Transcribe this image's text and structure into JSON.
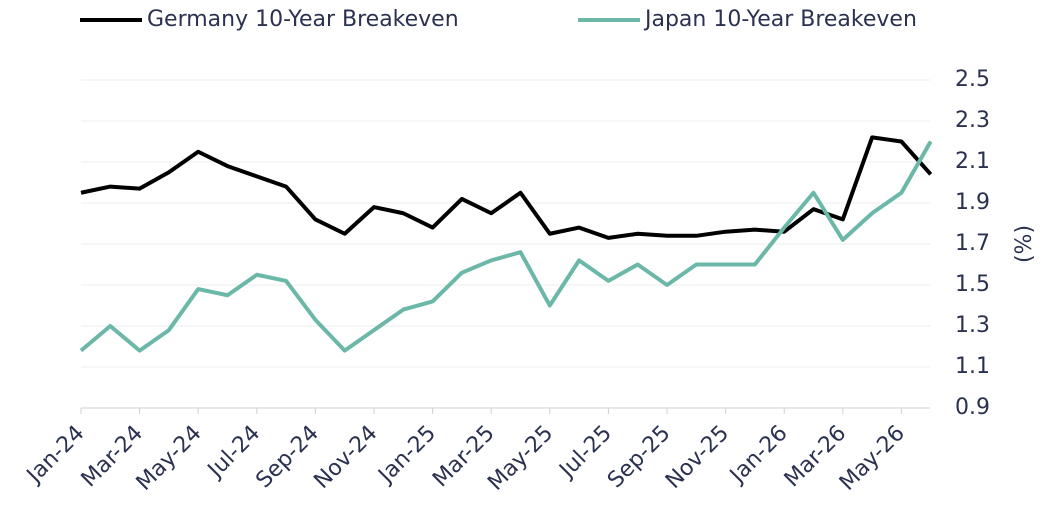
{
  "chart_data": {
    "type": "line",
    "x": [
      "2024-01",
      "2024-02",
      "2024-03",
      "2024-04",
      "2024-05",
      "2024-06",
      "2024-07",
      "2024-08",
      "2024-09",
      "2024-10",
      "2024-11",
      "2024-12",
      "2025-01",
      "2025-02",
      "2025-03",
      "2025-04",
      "2025-05",
      "2025-06",
      "2025-07",
      "2025-08",
      "2025-09",
      "2025-10",
      "2025-11",
      "2025-12",
      "2026-01",
      "2026-02",
      "2026-03",
      "2026-04",
      "2026-05",
      "2026-06"
    ],
    "series": [
      {
        "name": "Germany 10-Year Breakeven",
        "color": "#000000",
        "values": [
          1.95,
          1.98,
          1.97,
          2.05,
          2.15,
          2.08,
          2.03,
          1.98,
          1.82,
          1.75,
          1.88,
          1.85,
          1.78,
          1.92,
          1.85,
          1.95,
          1.75,
          1.78,
          1.73,
          1.75,
          1.74,
          1.74,
          1.76,
          1.77,
          1.76,
          1.87,
          1.82,
          2.22,
          2.2,
          2.04
        ]
      },
      {
        "name": "Japan 10-Year Breakeven",
        "color": "#6cb8a8",
        "values": [
          1.18,
          1.3,
          1.18,
          1.28,
          1.48,
          1.45,
          1.55,
          1.52,
          1.33,
          1.18,
          1.28,
          1.38,
          1.42,
          1.56,
          1.62,
          1.66,
          1.4,
          1.62,
          1.52,
          1.6,
          1.5,
          1.6,
          1.6,
          1.6,
          1.78,
          1.95,
          1.72,
          1.85,
          1.95,
          2.2
        ]
      }
    ],
    "xticks": [
      {
        "value": "2024-01",
        "label": "Jan-24"
      },
      {
        "value": "2024-03",
        "label": "Mar-24"
      },
      {
        "value": "2024-05",
        "label": "May-24"
      },
      {
        "value": "2024-07",
        "label": "Jul-24"
      },
      {
        "value": "2024-09",
        "label": "Sep-24"
      },
      {
        "value": "2024-11",
        "label": "Nov-24"
      },
      {
        "value": "2025-01",
        "label": "Jan-25"
      },
      {
        "value": "2025-03",
        "label": "Mar-25"
      },
      {
        "value": "2025-05",
        "label": "May-25"
      },
      {
        "value": "2025-07",
        "label": "Jul-25"
      },
      {
        "value": "2025-09",
        "label": "Sep-25"
      },
      {
        "value": "2025-11",
        "label": "Nov-25"
      },
      {
        "value": "2026-01",
        "label": "Jan-26"
      },
      {
        "value": "2026-03",
        "label": "Mar-26"
      },
      {
        "value": "2026-05",
        "label": "May-26"
      }
    ],
    "ylim": [
      0.9,
      2.5
    ],
    "yticks": [
      0.9,
      1.1,
      1.3,
      1.5,
      1.7,
      1.9,
      2.1,
      2.3,
      2.5
    ],
    "ylabel": "(%)",
    "grid": true
  }
}
